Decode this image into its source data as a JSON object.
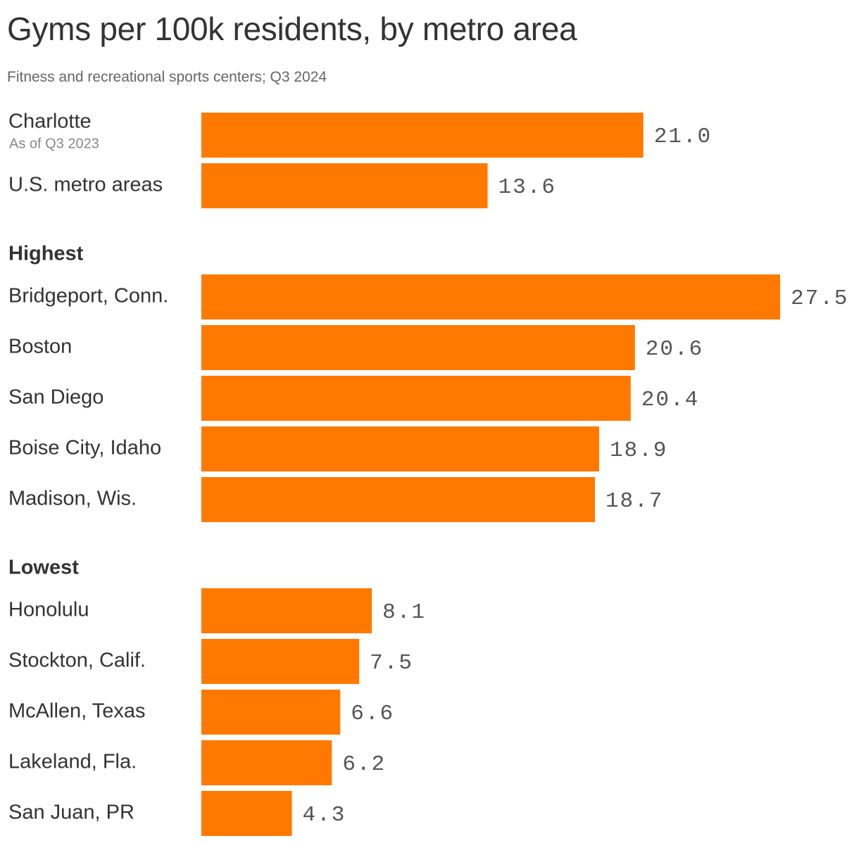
{
  "chart_data": {
    "type": "bar",
    "orientation": "horizontal",
    "title": "Gyms per 100k residents, by metro area",
    "subtitle": "Fitness and recreational sports centers; Q3 2024",
    "bar_color": "#ff7900",
    "xlim": [
      0,
      27.5
    ],
    "groups": [
      {
        "label": "",
        "rows": [
          {
            "category": "Charlotte",
            "note": "As of Q3 2023",
            "value": 21.0,
            "value_label": "21.0"
          },
          {
            "category": "U.S. metro areas",
            "note": "",
            "value": 13.6,
            "value_label": "13.6"
          }
        ]
      },
      {
        "label": "Highest",
        "rows": [
          {
            "category": "Bridgeport, Conn.",
            "note": "",
            "value": 27.5,
            "value_label": "27.5"
          },
          {
            "category": "Boston",
            "note": "",
            "value": 20.6,
            "value_label": "20.6"
          },
          {
            "category": "San Diego",
            "note": "",
            "value": 20.4,
            "value_label": "20.4"
          },
          {
            "category": "Boise City, Idaho",
            "note": "",
            "value": 18.9,
            "value_label": "18.9"
          },
          {
            "category": "Madison, Wis.",
            "note": "",
            "value": 18.7,
            "value_label": "18.7"
          }
        ]
      },
      {
        "label": "Lowest",
        "rows": [
          {
            "category": "Honolulu",
            "note": "",
            "value": 8.1,
            "value_label": "8.1"
          },
          {
            "category": "Stockton, Calif.",
            "note": "",
            "value": 7.5,
            "value_label": "7.5"
          },
          {
            "category": "McAllen, Texas",
            "note": "",
            "value": 6.6,
            "value_label": "6.6"
          },
          {
            "category": "Lakeland, Fla.",
            "note": "",
            "value": 6.2,
            "value_label": "6.2"
          },
          {
            "category": "San Juan, PR",
            "note": "",
            "value": 4.3,
            "value_label": "4.3"
          }
        ]
      }
    ]
  }
}
